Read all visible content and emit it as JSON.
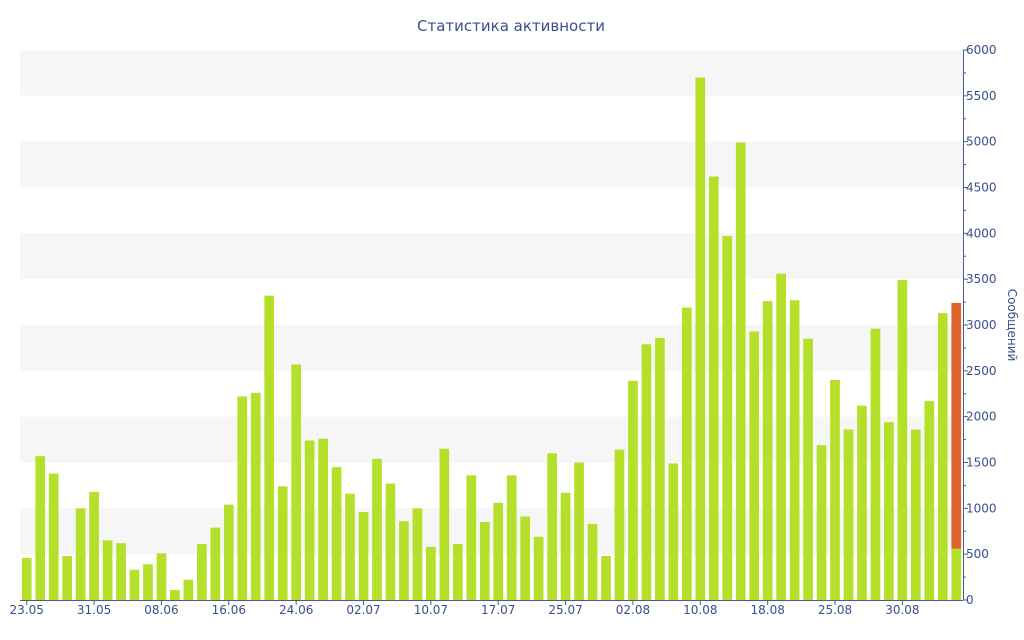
{
  "chart_data": {
    "type": "bar",
    "title": "Статистика активности",
    "xlabel": "",
    "ylabel": "Сообщений",
    "ylim": [
      0,
      6000
    ],
    "y_ticks": [
      0,
      500,
      1000,
      1500,
      2000,
      2500,
      3000,
      3500,
      4000,
      4500,
      5000,
      5500,
      6000
    ],
    "x_tick_labels": [
      "23.05",
      "31.05",
      "08.06",
      "16.06",
      "24.06",
      "02.07",
      "10.07",
      "17.07",
      "25.07",
      "02.08",
      "10.08",
      "18.08",
      "25.08",
      "30.08"
    ],
    "x_tick_bar_index": [
      0,
      5,
      10,
      15,
      20,
      25,
      30,
      35,
      40,
      45,
      50,
      55,
      60,
      65
    ],
    "grid": "horizontal bands",
    "y_axis_side": "right",
    "colors": {
      "bar": "#b5e02a",
      "highlight": "#e0642a",
      "text": "#3a4e8c",
      "axis": "#4a5a8a",
      "band": "#f6f6f6"
    },
    "values": [
      460,
      1570,
      1380,
      480,
      1000,
      1180,
      650,
      620,
      330,
      390,
      510,
      110,
      220,
      610,
      790,
      1040,
      2220,
      2260,
      3320,
      1240,
      2570,
      1740,
      1760,
      1450,
      1160,
      960,
      1540,
      1270,
      860,
      1000,
      580,
      1650,
      610,
      1360,
      850,
      1060,
      1360,
      910,
      690,
      1600,
      1170,
      1500,
      830,
      480,
      1640,
      2390,
      2790,
      2860,
      1490,
      3190,
      5700,
      4620,
      3970,
      4990,
      2930,
      3260,
      3560,
      3270,
      2850,
      1690,
      2400,
      1860,
      2120,
      2960,
      1940,
      3490,
      1860,
      2170,
      3130,
      3240
    ],
    "highlight_last": {
      "base": 560,
      "total": 3240
    }
  }
}
